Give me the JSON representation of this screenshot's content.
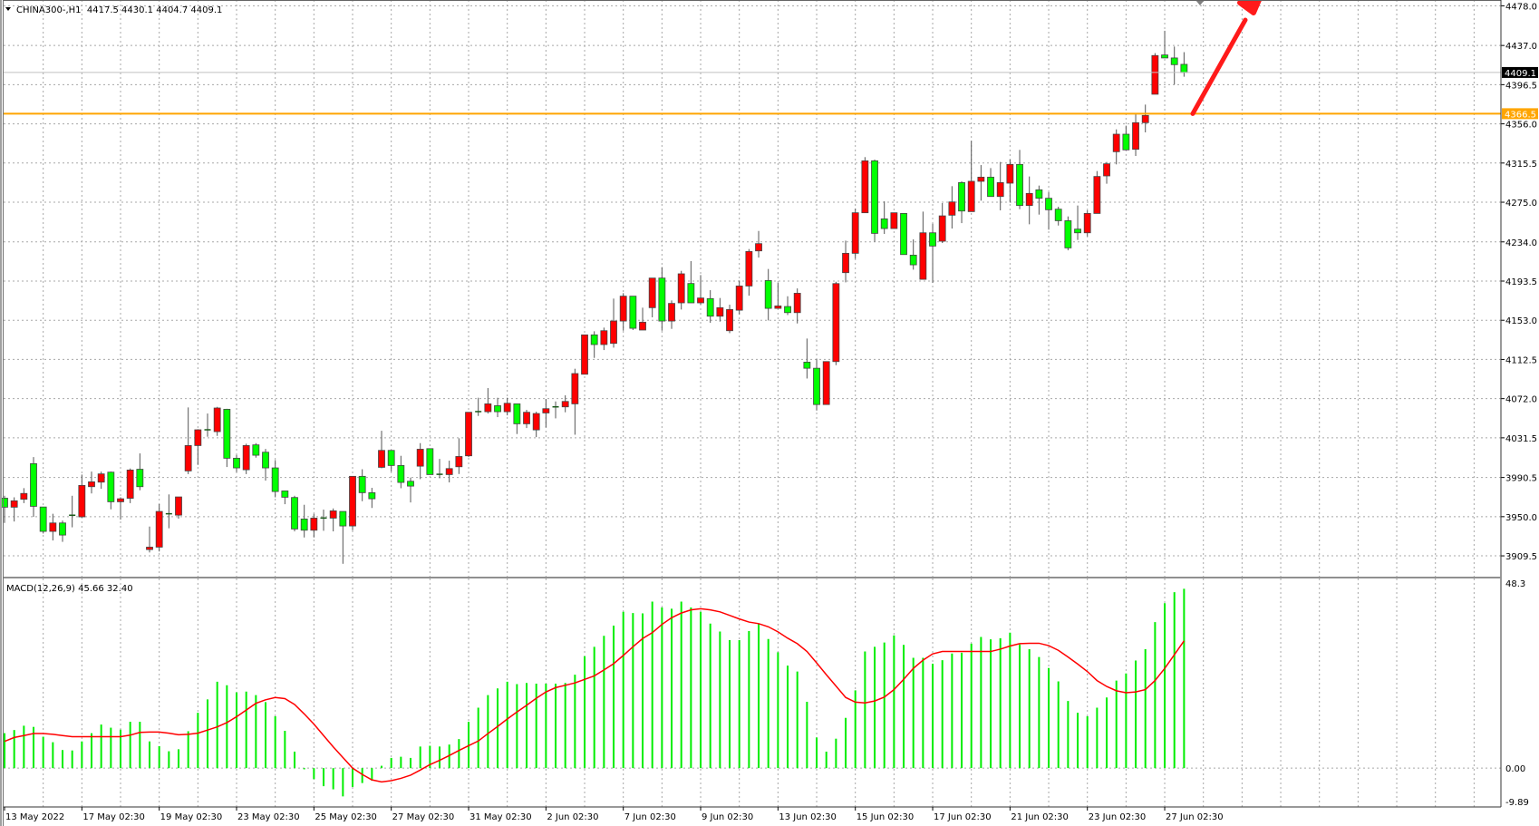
{
  "window": {
    "symbol_header": "CHINA300-,H1  4417.5 4430.1 4404.7 4409.1",
    "indicator_header": "MACD(12,26,9) 45.66 32.40"
  },
  "colors": {
    "bull_candle": "#ff0000",
    "bear_candle": "#00ff00",
    "macd_histogram": "#00ee00",
    "signal_line": "#ff0000",
    "support_line": "#ffa500",
    "arrow": "#ff1a1a",
    "bid_line": "#c0c0c0"
  },
  "icons": {
    "menu": "triangle-down-icon",
    "annotation": "red-arrow-up-right",
    "shift_marker": "triangle-down-icon"
  },
  "chart_data": [
    {
      "type": "candlestick",
      "symbol": "CHINA300-",
      "timeframe": "H1",
      "ylim": [
        3888,
        4484
      ],
      "grid": true,
      "y_ticks": [
        "4478.0",
        "4437.0",
        "4396.5",
        "4356.0",
        "4315.5",
        "4275.0",
        "4234.0",
        "4193.5",
        "4153.0",
        "4112.5",
        "4072.0",
        "4031.5",
        "3990.5",
        "3950.0",
        "3909.5"
      ],
      "x_ticks": [
        "13 May 2022",
        "17 May 02:30",
        "19 May 02:30",
        "23 May 02:30",
        "25 May 02:30",
        "27 May 02:30",
        "31 May 02:30",
        "2 Jun 02:30",
        "7 Jun 02:30",
        "9 Jun 02:30",
        "13 Jun 02:30",
        "15 Jun 02:30",
        "17 Jun 02:30",
        "21 Jun 02:30",
        "23 Jun 02:30",
        "27 Jun 02:30"
      ],
      "ohlc_order": [
        "open",
        "high",
        "low",
        "close"
      ],
      "ohlc": [
        [
          3969.1,
          3971.6,
          3943.5,
          3959.8
        ],
        [
          3959.8,
          3970,
          3945,
          3966.4
        ],
        [
          3968,
          3979.5,
          3964,
          3974
        ],
        [
          4004.8,
          4011.6,
          3949.8,
          3960.7
        ],
        [
          3960,
          3960,
          3932.6,
          3934.8
        ],
        [
          3934.8,
          3953,
          3925.4,
          3943.5
        ],
        [
          3943.5,
          3946,
          3924,
          3931
        ],
        [
          3951,
          3971.6,
          3939,
          3951.5
        ],
        [
          3949.8,
          3993.5,
          3949,
          3982.3
        ],
        [
          3981,
          3996.6,
          3974,
          3986
        ],
        [
          3985.7,
          3996.6,
          3978.8,
          3994.2
        ],
        [
          3996,
          3996.6,
          3957.6,
          3965.4
        ],
        [
          3965.4,
          3970,
          3947,
          3968.5
        ],
        [
          3969,
          3999.8,
          3964,
          3998.2
        ],
        [
          3999,
          4015.4,
          3977.3,
          3981
        ],
        [
          3916,
          3939.8,
          3913,
          3918.5
        ],
        [
          3918.5,
          3963,
          3914,
          3955.4
        ],
        [
          3952.5,
          3973,
          3938,
          3953
        ],
        [
          3951.6,
          3970.4,
          3948,
          3970.4
        ],
        [
          3997.3,
          4062.9,
          3994,
          4023.5
        ],
        [
          4023.5,
          4040.4,
          4003.5,
          4039.8
        ],
        [
          4039.8,
          4056.6,
          4032.6,
          4038.5
        ],
        [
          4037.9,
          4063.5,
          4033.5,
          4062.3
        ],
        [
          4061,
          4061.5,
          4001.3,
          4010.4
        ],
        [
          4010.4,
          4013.8,
          3996,
          4000.4
        ],
        [
          3998.5,
          4025.4,
          3994,
          4023.5
        ],
        [
          4024.2,
          4026,
          4011,
          4013.5
        ],
        [
          4016.6,
          4020,
          3987.3,
          4000.4
        ],
        [
          4000.4,
          4008.5,
          3970,
          3976
        ],
        [
          3976.6,
          3976.6,
          3962.9,
          3970.1
        ],
        [
          3969.8,
          3971.6,
          3934.8,
          3937.3
        ],
        [
          3947.6,
          3962.3,
          3928.5,
          3936
        ],
        [
          3936,
          3952.9,
          3928.5,
          3948.5
        ],
        [
          3948.5,
          3957.3,
          3935.4,
          3948.6
        ],
        [
          3948.5,
          3958.5,
          3934.8,
          3956
        ],
        [
          3955.4,
          3955.4,
          3901.3,
          3940.4
        ],
        [
          3940.4,
          3991.7,
          3936,
          3991.7
        ],
        [
          3991.7,
          3999,
          3966,
          3974.8
        ],
        [
          3974.8,
          3979.8,
          3959,
          3968.5
        ],
        [
          4001,
          4038.8,
          4000,
          4018.5
        ],
        [
          4018.5,
          4018.5,
          3996.6,
          4002.9
        ],
        [
          4002.9,
          4012.9,
          3979.4,
          3985.4
        ],
        [
          3986.6,
          3990.4,
          3964.7,
          3981.6
        ],
        [
          4002.2,
          4026,
          3988.8,
          4019.7
        ],
        [
          4020.3,
          4020.3,
          3993.5,
          3993.5
        ],
        [
          3993.8,
          4009.7,
          3989.7,
          3993.6
        ],
        [
          3993.5,
          4007.9,
          3985.4,
          3999.7
        ],
        [
          4001.6,
          4031,
          3994.1,
          4012.2
        ],
        [
          4012.9,
          4057.9,
          4011.6,
          4057.9
        ],
        [
          4058.5,
          4072.9,
          4054.1,
          4058.6
        ],
        [
          4058.5,
          4082.9,
          4056.6,
          4066.6
        ],
        [
          4064.7,
          4072.9,
          4052.9,
          4058.5
        ],
        [
          4058.5,
          4072.9,
          4054.7,
          4067.2
        ],
        [
          4066.6,
          4066.6,
          4035.4,
          4046
        ],
        [
          4046,
          4060.4,
          4041.6,
          4057.9
        ],
        [
          4039.7,
          4058.5,
          4032.2,
          4056.6
        ],
        [
          4057.2,
          4071.6,
          4042.2,
          4061.6
        ],
        [
          4063.5,
          4069.1,
          4051.6,
          4063.5
        ],
        [
          4063.5,
          4075.4,
          4057.9,
          4069.1
        ],
        [
          4066.6,
          4102.9,
          4034.7,
          4097.9
        ],
        [
          4097.2,
          4137.9,
          4097.2,
          4137.9
        ],
        [
          4137.9,
          4141.6,
          4114.1,
          4127.9
        ],
        [
          4127.9,
          4145.4,
          4122.2,
          4142.2
        ],
        [
          4129.1,
          4175.4,
          4124.7,
          4152.2
        ],
        [
          4152.2,
          4181,
          4142.2,
          4177.9
        ],
        [
          4177.9,
          4177.9,
          4142.9,
          4144.7
        ],
        [
          4142.9,
          4166,
          4142.9,
          4151
        ],
        [
          4166,
          4196.6,
          4156,
          4196.6
        ],
        [
          4196.6,
          4207.9,
          4142.2,
          4152.2
        ],
        [
          4152.2,
          4173.5,
          4144.1,
          4170.4
        ],
        [
          4171,
          4204.1,
          4164.1,
          4201
        ],
        [
          4191,
          4214.1,
          4171,
          4171
        ],
        [
          4171,
          4199.7,
          4169.1,
          4176
        ],
        [
          4175.4,
          4184.1,
          4150.4,
          4157.2
        ],
        [
          4157.2,
          4176,
          4151.6,
          4166
        ],
        [
          4142.2,
          4169.1,
          4139.7,
          4164.1
        ],
        [
          4163.4,
          4194.1,
          4159.1,
          4188.4
        ],
        [
          4188.4,
          4226.6,
          4178.4,
          4224.1
        ],
        [
          4224.7,
          4245.3,
          4217.8,
          4232.2
        ],
        [
          4194.1,
          4206,
          4152.8,
          4165.3
        ],
        [
          4165.3,
          4191.6,
          4165.3,
          4167.8
        ],
        [
          4167.2,
          4177.8,
          4158.4,
          4160.9
        ],
        [
          4160.9,
          4185.9,
          4149.7,
          4180.9
        ],
        [
          4109.7,
          4134.1,
          4092.8,
          4103.4
        ],
        [
          4103.4,
          4112.8,
          4059.7,
          4065.9
        ],
        [
          4065.9,
          4110.3,
          4065.9,
          4110.3
        ],
        [
          4110.3,
          4192.8,
          4106.6,
          4190.9
        ],
        [
          4202.2,
          4235.3,
          4192.2,
          4222.2
        ],
        [
          4222.2,
          4268.4,
          4216.6,
          4264.1
        ],
        [
          4264.1,
          4321.6,
          4264.1,
          4317.8
        ],
        [
          4317.8,
          4319.1,
          4234.1,
          4242.8
        ],
        [
          4257.8,
          4275.9,
          4242.2,
          4247.8
        ],
        [
          4247.8,
          4264.1,
          4247.8,
          4264.1
        ],
        [
          4263.4,
          4263.4,
          4220.9,
          4220.9
        ],
        [
          4220.3,
          4236.6,
          4205.3,
          4210.3
        ],
        [
          4195.3,
          4265.3,
          4195.3,
          4243.4
        ],
        [
          4243.4,
          4252.8,
          4191.6,
          4229.7
        ],
        [
          4234.7,
          4274.1,
          4232.8,
          4260.9
        ],
        [
          4261.6,
          4291.6,
          4247.8,
          4275.3
        ],
        [
          4295.3,
          4296.6,
          4253.4,
          4265.9
        ],
        [
          4265.3,
          4338.4,
          4265.3,
          4296.6
        ],
        [
          4296.6,
          4313.4,
          4276.6,
          4300.9
        ],
        [
          4300.9,
          4310.3,
          4280.9,
          4280.9
        ],
        [
          4280.9,
          4316.6,
          4266.6,
          4295.3
        ],
        [
          4294.7,
          4319.1,
          4274.7,
          4314.1
        ],
        [
          4314.1,
          4329.1,
          4267.8,
          4271.6
        ],
        [
          4271.6,
          4301.6,
          4252.2,
          4284.1
        ],
        [
          4287.8,
          4292.2,
          4262.2,
          4279.1
        ],
        [
          4279.1,
          4285.3,
          4246.6,
          4267.2
        ],
        [
          4267.8,
          4270.3,
          4250.9,
          4255.9
        ],
        [
          4255.9,
          4260.3,
          4225.3,
          4227.8
        ],
        [
          4247.2,
          4271.6,
          4236,
          4243.4
        ],
        [
          4243.4,
          4266.6,
          4239.7,
          4263.4
        ],
        [
          4263.4,
          4307.2,
          4263.4,
          4301.6
        ],
        [
          4302.2,
          4316.6,
          4294.1,
          4314.7
        ],
        [
          4327.2,
          4350.3,
          4314.1,
          4345.3
        ],
        [
          4345.3,
          4354.1,
          4329.1,
          4329.1
        ],
        [
          4329.7,
          4365.9,
          4322.8,
          4357.2
        ],
        [
          4357.2,
          4375.9,
          4347.2,
          4364.7
        ],
        [
          4386.6,
          4429.1,
          4386.6,
          4426.6
        ],
        [
          4427.2,
          4452.2,
          4424.1,
          4424.1
        ],
        [
          4424.1,
          4435.9,
          4396.6,
          4417.2
        ],
        [
          4417.5,
          4430.1,
          4404.7,
          4409.1
        ]
      ],
      "bid_price": {
        "value": 4409.1,
        "label": "4409.1"
      },
      "horizontal_line": {
        "value": 4366.5,
        "label": "4366.5"
      }
    },
    {
      "type": "bar+line",
      "name": "MACD(12,26,9)",
      "ylim": [
        -9.89,
        48.3
      ],
      "y_ticks": [
        "48.3",
        "0.00",
        "-9.89"
      ],
      "grid": true,
      "histogram": [
        8.9,
        9.7,
        10.8,
        10.5,
        8.0,
        6.6,
        4.6,
        4.5,
        6.8,
        8.9,
        11.1,
        10.3,
        9.8,
        11.8,
        11.8,
        6.8,
        5.6,
        4.3,
        4.8,
        9.4,
        14.1,
        17.5,
        22.0,
        21.1,
        19.3,
        19.5,
        18.6,
        16.8,
        13.2,
        9.5,
        4.2,
        -0.3,
        -2.8,
        -4.6,
        -5.4,
        -7.2,
        -4.8,
        -3.8,
        -3.2,
        0.6,
        2.6,
        2.9,
        2.6,
        5.5,
        5.7,
        5.5,
        6.0,
        7.4,
        11.8,
        15.4,
        18.6,
        20.3,
        22.0,
        21.4,
        21.7,
        21.5,
        21.5,
        21.5,
        21.7,
        23.8,
        28.5,
        30.9,
        33.7,
        36.3,
        39.8,
        39.5,
        39.4,
        42.4,
        40.9,
        40.6,
        42.4,
        40.9,
        39.8,
        36.8,
        34.8,
        32.6,
        32.6,
        34.9,
        36.8,
        32.9,
        29.5,
        26.1,
        24.6,
        16.9,
        7.8,
        4.2,
        7.5,
        12.8,
        19.8,
        29.7,
        30.9,
        32.0,
        33.8,
        31.4,
        28.1,
        28.1,
        26.6,
        27.5,
        29.2,
        29.4,
        31.7,
        33.4,
        32.8,
        33.1,
        34.5,
        31.5,
        30.3,
        28.3,
        25.5,
        22.1,
        17.1,
        14.1,
        13.2,
        15.4,
        18.0,
        22.3,
        24.1,
        27.4,
        30.3,
        37.2,
        42.0,
        44.8,
        45.66
      ],
      "signal": [
        6.8,
        7.8,
        8.3,
        8.8,
        8.8,
        8.6,
        8.3,
        8.0,
        8.0,
        8.0,
        8.0,
        8.0,
        8.0,
        8.4,
        9.1,
        9.2,
        9.2,
        8.9,
        8.5,
        8.6,
        8.9,
        9.7,
        10.5,
        11.6,
        13.1,
        14.8,
        16.5,
        17.4,
        18.0,
        17.7,
        16.2,
        13.8,
        11.2,
        8.3,
        5.4,
        2.7,
        0.0,
        -1.6,
        -3.0,
        -3.5,
        -3.2,
        -2.6,
        -1.8,
        -0.5,
        0.9,
        2.0,
        3.2,
        4.5,
        5.7,
        6.9,
        8.8,
        10.6,
        12.5,
        14.3,
        16.0,
        17.8,
        19.4,
        20.5,
        21.1,
        21.7,
        22.6,
        23.5,
        25.0,
        26.6,
        28.7,
        30.9,
        33.0,
        34.5,
        36.6,
        38.3,
        39.5,
        40.3,
        40.6,
        40.3,
        39.8,
        38.9,
        38.0,
        37.2,
        36.8,
        36.0,
        34.7,
        33.1,
        31.7,
        29.7,
        26.8,
        23.8,
        20.9,
        18.0,
        16.8,
        16.6,
        17.1,
        18.1,
        20.0,
        22.6,
        25.4,
        27.5,
        29.1,
        29.7,
        29.7,
        29.7,
        29.7,
        29.7,
        29.7,
        30.3,
        31.1,
        31.7,
        31.8,
        31.8,
        31.2,
        30.0,
        28.3,
        26.5,
        24.6,
        22.3,
        20.8,
        19.7,
        19.2,
        19.4,
        20.0,
        22.3,
        25.4,
        28.9,
        32.4
      ]
    }
  ]
}
